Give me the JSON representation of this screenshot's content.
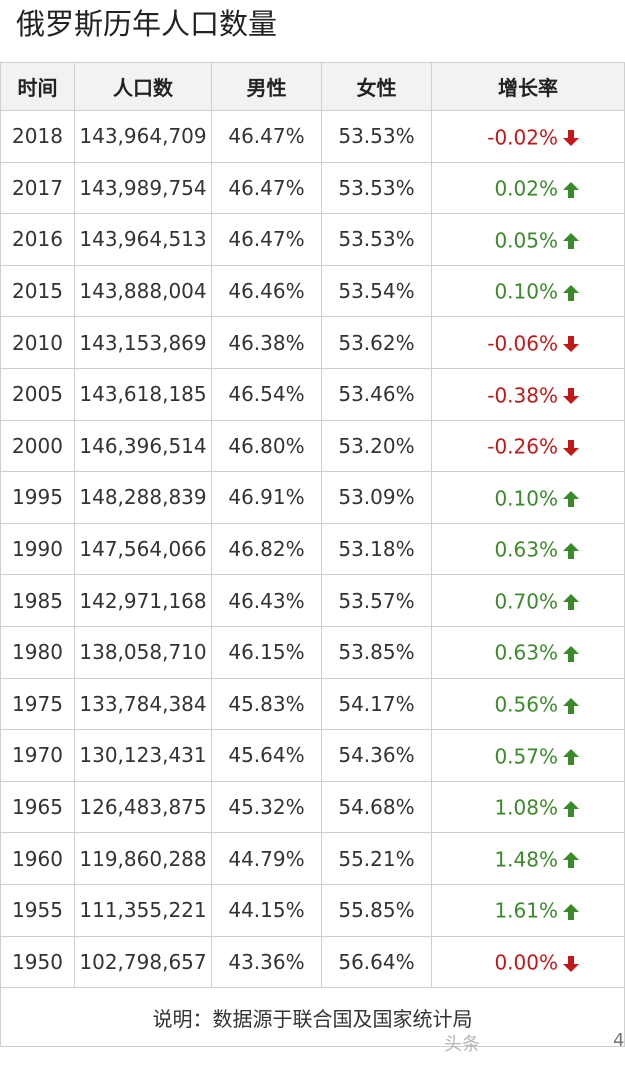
{
  "title": "俄罗斯历年人口数量",
  "headers": {
    "year": "时间",
    "population": "人口数",
    "male": "男性",
    "female": "女性",
    "growth": "增长率"
  },
  "rows": [
    {
      "year": "2018",
      "population": "143,964,709",
      "male": "46.47%",
      "female": "53.53%",
      "growth": "-0.02%",
      "trend": "down"
    },
    {
      "year": "2017",
      "population": "143,989,754",
      "male": "46.47%",
      "female": "53.53%",
      "growth": "0.02%",
      "trend": "up"
    },
    {
      "year": "2016",
      "population": "143,964,513",
      "male": "46.47%",
      "female": "53.53%",
      "growth": "0.05%",
      "trend": "up"
    },
    {
      "year": "2015",
      "population": "143,888,004",
      "male": "46.46%",
      "female": "53.54%",
      "growth": "0.10%",
      "trend": "up"
    },
    {
      "year": "2010",
      "population": "143,153,869",
      "male": "46.38%",
      "female": "53.62%",
      "growth": "-0.06%",
      "trend": "down"
    },
    {
      "year": "2005",
      "population": "143,618,185",
      "male": "46.54%",
      "female": "53.46%",
      "growth": "-0.38%",
      "trend": "down"
    },
    {
      "year": "2000",
      "population": "146,396,514",
      "male": "46.80%",
      "female": "53.20%",
      "growth": "-0.26%",
      "trend": "down"
    },
    {
      "year": "1995",
      "population": "148,288,839",
      "male": "46.91%",
      "female": "53.09%",
      "growth": "0.10%",
      "trend": "up"
    },
    {
      "year": "1990",
      "population": "147,564,066",
      "male": "46.82%",
      "female": "53.18%",
      "growth": "0.63%",
      "trend": "up"
    },
    {
      "year": "1985",
      "population": "142,971,168",
      "male": "46.43%",
      "female": "53.57%",
      "growth": "0.70%",
      "trend": "up"
    },
    {
      "year": "1980",
      "population": "138,058,710",
      "male": "46.15%",
      "female": "53.85%",
      "growth": "0.63%",
      "trend": "up"
    },
    {
      "year": "1975",
      "population": "133,784,384",
      "male": "45.83%",
      "female": "54.17%",
      "growth": "0.56%",
      "trend": "up"
    },
    {
      "year": "1970",
      "population": "130,123,431",
      "male": "45.64%",
      "female": "54.36%",
      "growth": "0.57%",
      "trend": "up"
    },
    {
      "year": "1965",
      "population": "126,483,875",
      "male": "45.32%",
      "female": "54.68%",
      "growth": "1.08%",
      "trend": "up"
    },
    {
      "year": "1960",
      "population": "119,860,288",
      "male": "44.79%",
      "female": "55.21%",
      "growth": "1.48%",
      "trend": "up"
    },
    {
      "year": "1955",
      "population": "111,355,221",
      "male": "44.15%",
      "female": "55.85%",
      "growth": "1.61%",
      "trend": "up"
    },
    {
      "year": "1950",
      "population": "102,798,657",
      "male": "43.36%",
      "female": "56.64%",
      "growth": "0.00%",
      "trend": "down"
    }
  ],
  "note": "说明：数据源于联合国及国家统计局",
  "watermark": "头条",
  "watermark_edge": "4",
  "colors": {
    "up": "#3a8a2a",
    "down": "#c41818",
    "header_bg": "#f2f2f2",
    "border": "#cfcfcf"
  },
  "icons": {
    "up": "arrow-up-icon",
    "down": "arrow-down-icon"
  }
}
